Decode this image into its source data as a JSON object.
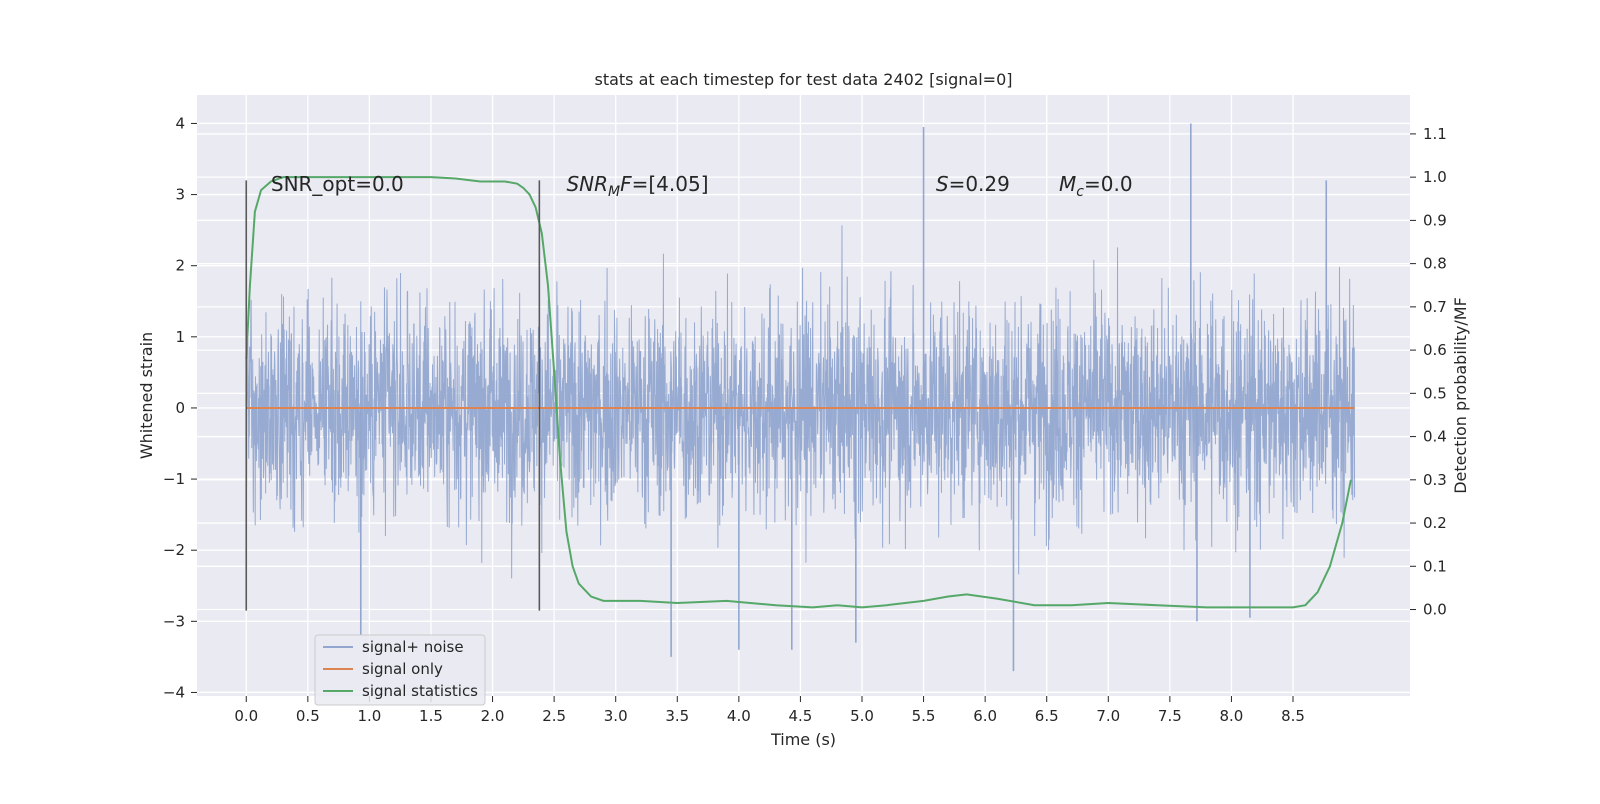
{
  "chart_data": {
    "type": "line",
    "title": "stats at each timestep for test data 2402 [signal=0]",
    "xlabel": "Time (s)",
    "ylabel": "Whitened strain",
    "ylabel_right": "Detection probability/MF",
    "xlim": [
      -0.4,
      9.45
    ],
    "ylim": [
      -4.05,
      4.4
    ],
    "ylim_right": [
      -0.2,
      1.19
    ],
    "x_ticks": [
      "0.0",
      "0.5",
      "1.0",
      "1.5",
      "2.0",
      "2.5",
      "3.0",
      "3.5",
      "4.0",
      "4.5",
      "5.0",
      "5.5",
      "6.0",
      "6.5",
      "7.0",
      "7.5",
      "8.0",
      "8.5"
    ],
    "x_tick_values": [
      0.0,
      0.5,
      1.0,
      1.5,
      2.0,
      2.5,
      3.0,
      3.5,
      4.0,
      4.5,
      5.0,
      5.5,
      6.0,
      6.5,
      7.0,
      7.5,
      8.0,
      8.5
    ],
    "y_ticks": [
      "4",
      "3",
      "2",
      "1",
      "0",
      "−1",
      "−2",
      "−3",
      "−4"
    ],
    "y_tick_values": [
      4,
      3,
      2,
      1,
      0,
      -1,
      -2,
      -3,
      -4
    ],
    "y_right_ticks": [
      "1.1",
      "1.0",
      "0.9",
      "0.8",
      "0.7",
      "0.6",
      "0.5",
      "0.4",
      "0.3",
      "0.2",
      "0.1",
      "0.0"
    ],
    "y_right_tick_values": [
      1.1,
      1.0,
      0.9,
      0.8,
      0.7,
      0.6,
      0.5,
      0.4,
      0.3,
      0.2,
      0.1,
      0.0
    ],
    "series": [
      {
        "name": "signal+ noise",
        "axis": "left",
        "style": "noise",
        "color": "#92a6cf",
        "t_start": 0.0,
        "t_end": 9.0,
        "envelope_sigma": 0.75,
        "spike_peaks": [
          [
            3.2,
            0.8
          ],
          [
            5.5,
            3.95
          ],
          [
            7.67,
            4.0
          ],
          [
            8.77,
            3.2
          ],
          [
            3.45,
            -3.5
          ],
          [
            4.0,
            -3.4
          ],
          [
            4.43,
            -3.4
          ],
          [
            4.95,
            -3.3
          ],
          [
            6.23,
            -3.7
          ],
          [
            0.93,
            -3.2
          ],
          [
            7.72,
            -3.0
          ],
          [
            8.15,
            -2.95
          ]
        ]
      },
      {
        "name": "signal only",
        "axis": "left",
        "style": "line",
        "color": "#dd8452",
        "x": [
          0.0,
          9.0
        ],
        "y": [
          0.0,
          0.0
        ]
      },
      {
        "name": "signal statistics",
        "axis": "right",
        "style": "line",
        "color": "#55a868",
        "x": [
          0.0,
          0.03,
          0.07,
          0.12,
          0.2,
          0.3,
          0.6,
          1.0,
          1.5,
          1.7,
          1.9,
          2.0,
          2.1,
          2.2,
          2.25,
          2.3,
          2.35,
          2.4,
          2.45,
          2.5,
          2.55,
          2.6,
          2.65,
          2.7,
          2.8,
          2.9,
          3.0,
          3.2,
          3.5,
          3.9,
          4.3,
          4.6,
          4.8,
          5.0,
          5.2,
          5.5,
          5.7,
          5.85,
          6.1,
          6.4,
          6.7,
          7.0,
          7.4,
          7.8,
          8.2,
          8.5,
          8.6,
          8.7,
          8.8,
          8.9,
          8.97
        ],
        "y": [
          0.58,
          0.75,
          0.92,
          0.97,
          0.99,
          1.0,
          1.0,
          1.0,
          1.0,
          0.997,
          0.99,
          0.99,
          0.99,
          0.985,
          0.975,
          0.96,
          0.93,
          0.87,
          0.75,
          0.55,
          0.34,
          0.18,
          0.1,
          0.06,
          0.03,
          0.02,
          0.02,
          0.02,
          0.015,
          0.02,
          0.01,
          0.005,
          0.01,
          0.005,
          0.01,
          0.02,
          0.03,
          0.035,
          0.025,
          0.01,
          0.01,
          0.015,
          0.01,
          0.005,
          0.005,
          0.005,
          0.01,
          0.04,
          0.1,
          0.2,
          0.3
        ]
      }
    ],
    "vertical_lines": [
      {
        "x": 0.0,
        "y_from": -2.85,
        "y_to": 3.2,
        "color": "#5a5a5a"
      },
      {
        "x": 2.38,
        "y_from": -2.85,
        "y_to": 3.2,
        "color": "#5a5a5a"
      }
    ],
    "annotations": [
      {
        "x": 0.2,
        "y": 3.05,
        "parts": [
          {
            "text": "SNR_opt=0.0",
            "style": "normal"
          }
        ]
      },
      {
        "x": 2.6,
        "y": 3.05,
        "parts": [
          {
            "text": "SNR",
            "style": "italic"
          },
          {
            "text": "M",
            "style": "italic-sub"
          },
          {
            "text": "F",
            "style": "italic"
          },
          {
            "text": "=[4.05]",
            "style": "normal"
          }
        ]
      },
      {
        "x": 5.6,
        "y": 3.05,
        "parts": [
          {
            "text": "S",
            "style": "italic"
          },
          {
            "text": "=0.29",
            "style": "normal"
          }
        ]
      },
      {
        "x": 6.6,
        "y": 3.05,
        "parts": [
          {
            "text": "M",
            "style": "italic"
          },
          {
            "text": "c",
            "style": "italic-sub"
          },
          {
            "text": "=0.0",
            "style": "normal"
          }
        ]
      }
    ],
    "legend": {
      "placement": "lower-left",
      "entries": [
        {
          "label": "signal+ noise",
          "color": "#92a6cf"
        },
        {
          "label": "signal only",
          "color": "#dd8452"
        },
        {
          "label": "signal statistics",
          "color": "#55a868"
        }
      ]
    },
    "grid": true,
    "background": "#eaeaf2"
  }
}
